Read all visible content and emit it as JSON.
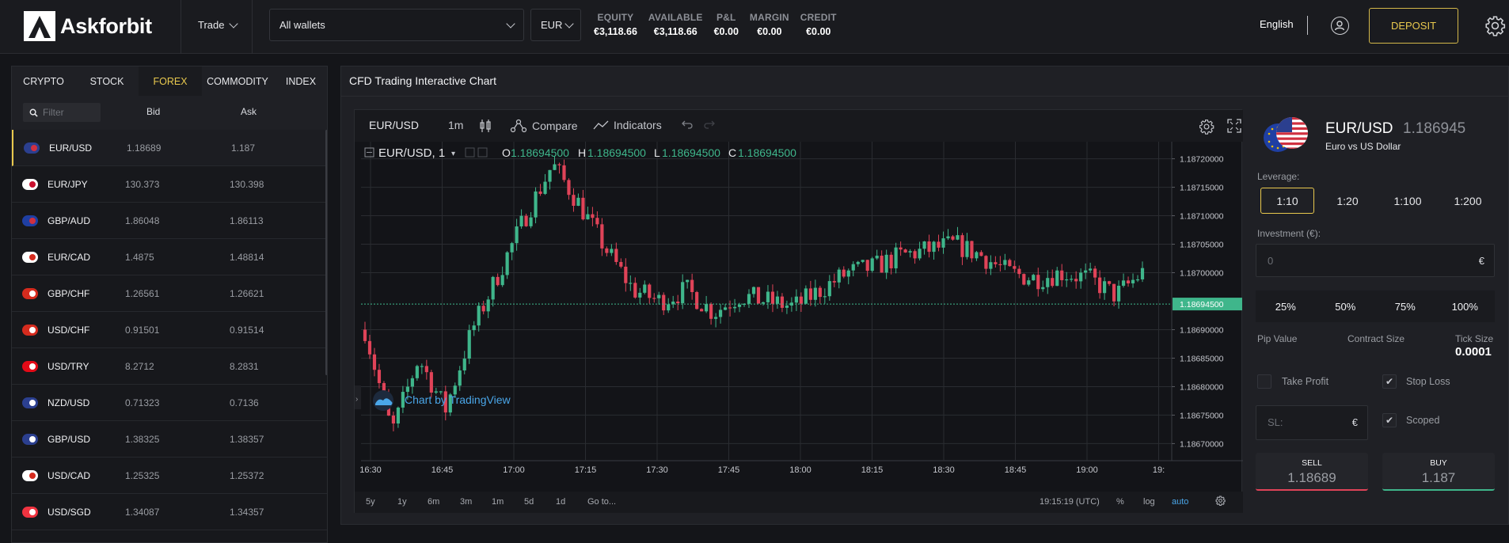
{
  "header": {
    "logo_text": "Askforbit",
    "trade_label": "Trade",
    "wallet_value": "All wallets",
    "currency_value": "EUR",
    "stats": [
      {
        "label": "EQUITY",
        "value": "€3,118.66"
      },
      {
        "label": "AVAILABLE",
        "value": "€3,118.66"
      },
      {
        "label": "P&L",
        "value": "€0.00"
      },
      {
        "label": "MARGIN",
        "value": "€0.00"
      },
      {
        "label": "CREDIT",
        "value": "€0.00"
      }
    ],
    "language": "English",
    "deposit_label": "DEPOSIT"
  },
  "market": {
    "tabs": [
      "CRYPTO",
      "STOCK",
      "FOREX",
      "COMMODITY",
      "INDEX"
    ],
    "active_tab": "FOREX",
    "filter_placeholder": "Filter",
    "col_bid": "Bid",
    "col_ask": "Ask",
    "rows": [
      {
        "symbol": "EUR/USD",
        "bid": "1.18689",
        "ask": "1.187",
        "flag": "eu-us"
      },
      {
        "symbol": "EUR/JPY",
        "bid": "130.373",
        "ask": "130.398",
        "flag": "jp"
      },
      {
        "symbol": "GBP/AUD",
        "bid": "1.86048",
        "ask": "1.86113",
        "flag": "au"
      },
      {
        "symbol": "EUR/CAD",
        "bid": "1.4875",
        "ask": "1.48814",
        "flag": "ca"
      },
      {
        "symbol": "GBP/CHF",
        "bid": "1.26561",
        "ask": "1.26621",
        "flag": "ch"
      },
      {
        "symbol": "USD/CHF",
        "bid": "0.91501",
        "ask": "0.91514",
        "flag": "ch"
      },
      {
        "symbol": "USD/TRY",
        "bid": "8.2712",
        "ask": "8.2831",
        "flag": "tr"
      },
      {
        "symbol": "NZD/USD",
        "bid": "0.71323",
        "ask": "0.7136",
        "flag": "us"
      },
      {
        "symbol": "GBP/USD",
        "bid": "1.38325",
        "ask": "1.38357",
        "flag": "us"
      },
      {
        "symbol": "USD/CAD",
        "bid": "1.25325",
        "ask": "1.25372",
        "flag": "ca"
      },
      {
        "symbol": "USD/SGD",
        "bid": "1.34087",
        "ask": "1.34357",
        "flag": "sg"
      }
    ]
  },
  "chart_panel": {
    "title": "CFD Trading Interactive Chart",
    "symbol": "EUR/USD",
    "interval": "1m",
    "compare_label": "Compare",
    "indicators_label": "Indicators",
    "legend_symbol": "EUR/USD, 1",
    "ohlc": {
      "o_label": "O",
      "o": "1.18694500",
      "h_label": "H",
      "h": "1.18694500",
      "l_label": "L",
      "l": "1.18694500",
      "c_label": "C",
      "c": "1.18694500"
    },
    "watermark": "Chart by TradingView",
    "last_price_label": "1.18694500",
    "y_ticks": [
      "1.18720000",
      "1.18715000",
      "1.18710000",
      "1.18705000",
      "1.18700000",
      "1.18690000",
      "1.18685000",
      "1.18680000",
      "1.18675000",
      "1.18670000"
    ],
    "x_ticks": [
      "16:30",
      "16:45",
      "17:00",
      "17:15",
      "17:30",
      "17:45",
      "18:00",
      "18:15",
      "18:30",
      "18:45",
      "19:00",
      "19:"
    ],
    "ranges": [
      "5y",
      "1y",
      "6m",
      "3m",
      "1m",
      "5d",
      "1d",
      "Go to..."
    ],
    "clock": "19:15:19 (UTC)",
    "pct_label": "%",
    "log_label": "log",
    "auto_label": "auto",
    "up_color": "#3fb68b",
    "down_color": "#e04358"
  },
  "chart_data": {
    "type": "candlestick",
    "x": [
      "16:30",
      "16:45",
      "17:00",
      "17:15",
      "17:30",
      "17:45",
      "18:00",
      "18:15",
      "18:30",
      "18:45",
      "19:00"
    ],
    "ylim": [
      1.18667,
      1.18723
    ],
    "last_price": 1.186945,
    "candles_close": [
      1.1869,
      1.18672,
      1.18685,
      1.18676,
      1.1869,
      1.187,
      1.1871,
      1.18719,
      1.18712,
      1.18704,
      1.18697,
      1.18695,
      1.18697,
      1.18693,
      1.18696,
      1.18695,
      1.18694,
      1.18697,
      1.187,
      1.18701,
      1.18703,
      1.18704,
      1.18705,
      1.18703,
      1.187,
      1.18699,
      1.187,
      1.18699,
      1.18696,
      1.187
    ]
  },
  "trade_panel": {
    "symbol": "EUR/USD",
    "price": "1.186945",
    "description": "Euro vs US Dollar",
    "leverage_label": "Leverage:",
    "leverage_options": [
      "1:10",
      "1:20",
      "1:100",
      "1:200"
    ],
    "active_leverage": "1:10",
    "investment_label": "Investment (€):",
    "investment_value": "0",
    "investment_currency": "€",
    "pct_options": [
      "25%",
      "50%",
      "75%",
      "100%"
    ],
    "pip_value_label": "Pip Value",
    "contract_size_label": "Contract Size",
    "tick_size_label": "Tick Size",
    "tick_size_value": "0.0001",
    "take_profit_label": "Take Profit",
    "stop_loss_label": "Stop Loss",
    "scoped_label": "Scoped",
    "sl_placeholder": "SL:",
    "sl_currency": "€",
    "sell_label": "SELL",
    "sell_price": "1.18689",
    "buy_label": "BUY",
    "buy_price": "1.187"
  }
}
